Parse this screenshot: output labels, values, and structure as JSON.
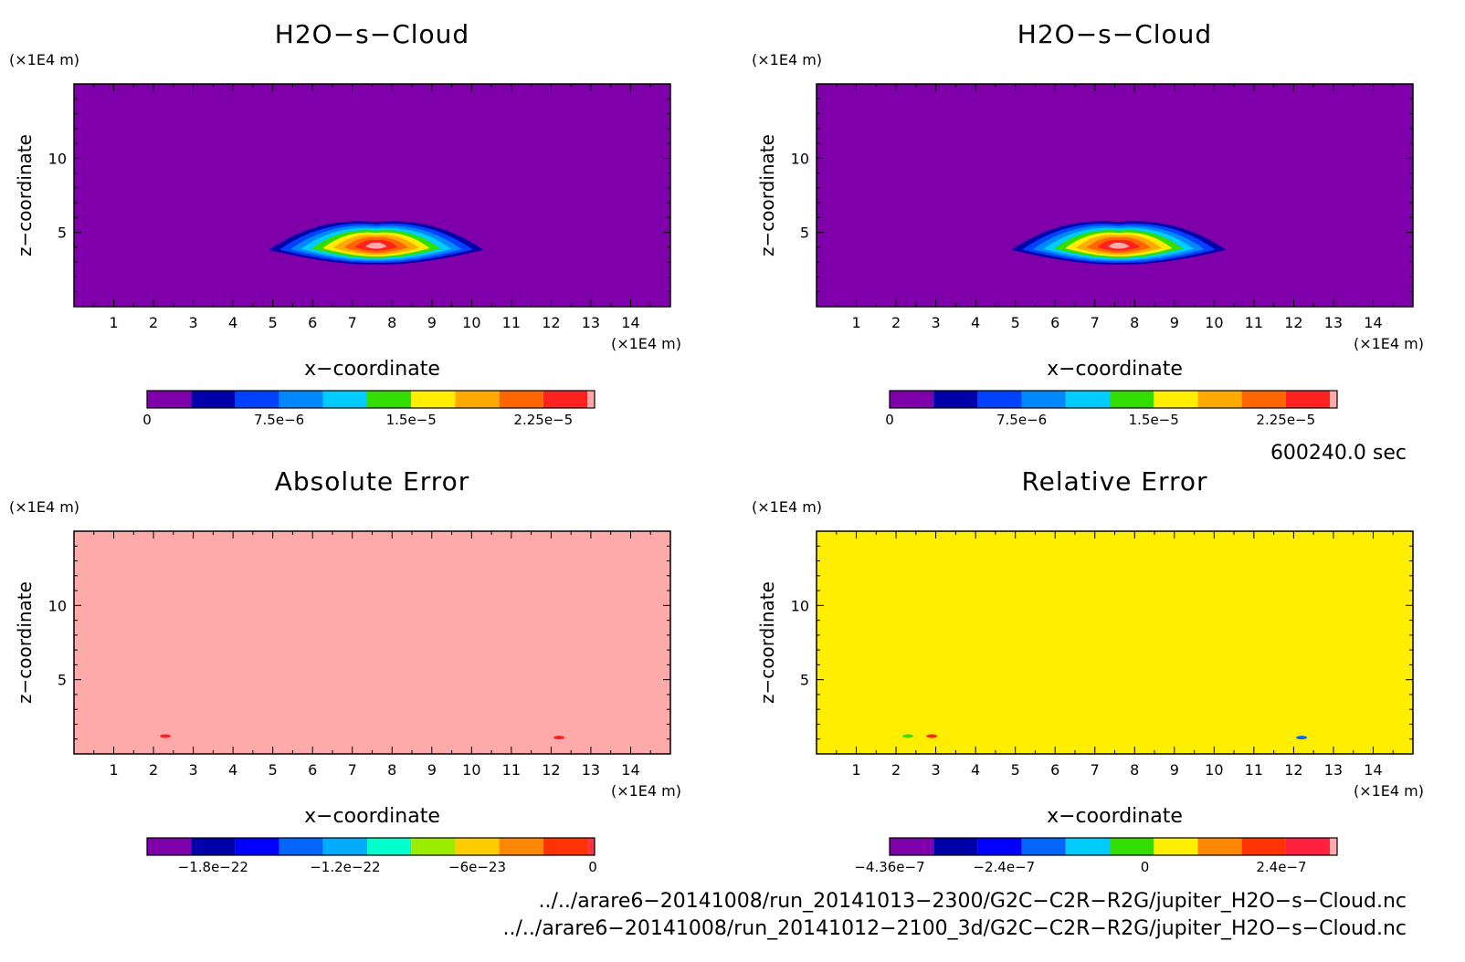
{
  "chart_data": [
    {
      "type": "heatmap",
      "title": "H2O−s−Cloud",
      "xlabel": "x−coordinate",
      "ylabel": "z−coordinate",
      "x_unit": "(×1E4 m)",
      "y_unit": "(×1E4 m)",
      "xlim": [
        0,
        15
      ],
      "ylim": [
        0,
        15
      ],
      "x_ticks": [
        "1",
        "2",
        "3",
        "4",
        "5",
        "6",
        "7",
        "8",
        "9",
        "10",
        "11",
        "12",
        "13",
        "14"
      ],
      "y_ticks": [
        "5",
        "10"
      ],
      "background_color": "#7f00aa",
      "features": [
        {
          "kind": "cloud",
          "x_center": 7.6,
          "z_center": 4.2,
          "half_width": 2.7,
          "half_height": 1.5
        }
      ],
      "colorbar": {
        "colors": [
          "#7f00aa",
          "#0000aa",
          "#0040ff",
          "#0088ff",
          "#00ccff",
          "#33dd00",
          "#ffee00",
          "#ffaa00",
          "#ff6600",
          "#ff2020",
          "#ffaaaa"
        ],
        "tick_labels": [
          "0",
          "7.5e−6",
          "1.5e−5",
          "2.25e−5"
        ]
      }
    },
    {
      "type": "heatmap",
      "title": "H2O−s−Cloud",
      "xlabel": "x−coordinate",
      "ylabel": "z−coordinate",
      "x_unit": "(×1E4 m)",
      "y_unit": "(×1E4 m)",
      "xlim": [
        0,
        15
      ],
      "ylim": [
        0,
        15
      ],
      "x_ticks": [
        "1",
        "2",
        "3",
        "4",
        "5",
        "6",
        "7",
        "8",
        "9",
        "10",
        "11",
        "12",
        "13",
        "14"
      ],
      "y_ticks": [
        "5",
        "10"
      ],
      "background_color": "#7f00aa",
      "features": [
        {
          "kind": "cloud",
          "x_center": 7.6,
          "z_center": 4.2,
          "half_width": 2.7,
          "half_height": 1.5
        }
      ],
      "colorbar": {
        "colors": [
          "#7f00aa",
          "#0000aa",
          "#0040ff",
          "#0088ff",
          "#00ccff",
          "#33dd00",
          "#ffee00",
          "#ffaa00",
          "#ff6600",
          "#ff2020",
          "#ffaaaa"
        ],
        "tick_labels": [
          "0",
          "7.5e−6",
          "1.5e−5",
          "2.25e−5"
        ]
      }
    },
    {
      "type": "heatmap",
      "title": "Absolute Error",
      "xlabel": "x−coordinate",
      "ylabel": "z−coordinate",
      "x_unit": "(×1E4 m)",
      "y_unit": "(×1E4 m)",
      "xlim": [
        0,
        15
      ],
      "ylim": [
        0,
        15
      ],
      "x_ticks": [
        "1",
        "2",
        "3",
        "4",
        "5",
        "6",
        "7",
        "8",
        "9",
        "10",
        "11",
        "12",
        "13",
        "14"
      ],
      "y_ticks": [
        "5",
        "10"
      ],
      "background_color": "#ffaaaa",
      "features": [
        {
          "kind": "blip",
          "x_center": 2.3,
          "z_center": 1.2,
          "color": "#ff2020"
        },
        {
          "kind": "blip",
          "x_center": 12.2,
          "z_center": 1.1,
          "color": "#ff2020"
        }
      ],
      "colorbar": {
        "colors": [
          "#7f00aa",
          "#0000aa",
          "#0000ff",
          "#0066ff",
          "#00aaff",
          "#00ffcc",
          "#99ee00",
          "#ffcc00",
          "#ff8800",
          "#ff3300",
          "#ff3344"
        ],
        "tick_labels": [
          "−1.8e−22",
          "−1.2e−22",
          "−6e−23",
          "0"
        ]
      }
    },
    {
      "type": "heatmap",
      "title": "Relative Error",
      "xlabel": "x−coordinate",
      "ylabel": "z−coordinate",
      "x_unit": "(×1E4 m)",
      "y_unit": "(×1E4 m)",
      "xlim": [
        0,
        15
      ],
      "ylim": [
        0,
        15
      ],
      "x_ticks": [
        "1",
        "2",
        "3",
        "4",
        "5",
        "6",
        "7",
        "8",
        "9",
        "10",
        "11",
        "12",
        "13",
        "14"
      ],
      "y_ticks": [
        "5",
        "10"
      ],
      "background_color": "#ffee00",
      "features": [
        {
          "kind": "blip",
          "x_center": 2.3,
          "z_center": 1.2,
          "color": "#33dd00"
        },
        {
          "kind": "blip",
          "x_center": 2.9,
          "z_center": 1.2,
          "color": "#ff2020"
        },
        {
          "kind": "blip",
          "x_center": 12.2,
          "z_center": 1.1,
          "color": "#0066ff"
        }
      ],
      "colorbar": {
        "colors": [
          "#7f00aa",
          "#0000aa",
          "#0000ff",
          "#0066ff",
          "#00ccff",
          "#33dd00",
          "#ffee00",
          "#ff8800",
          "#ff3300",
          "#ff2040",
          "#ffaaaa"
        ],
        "tick_labels": [
          "−4.36e−7",
          "−2.4e−7",
          "0",
          "2.4e−7"
        ]
      }
    }
  ],
  "footer": {
    "time_label": "600240.0 sec",
    "file1": "../../arare6−20141008/run_20141013−2300/G2C−C2R−R2G/jupiter_H2O−s−Cloud.nc",
    "file2": "../../arare6−20141008/run_20141012−2100_3d/G2C−C2R−R2G/jupiter_H2O−s−Cloud.nc"
  }
}
